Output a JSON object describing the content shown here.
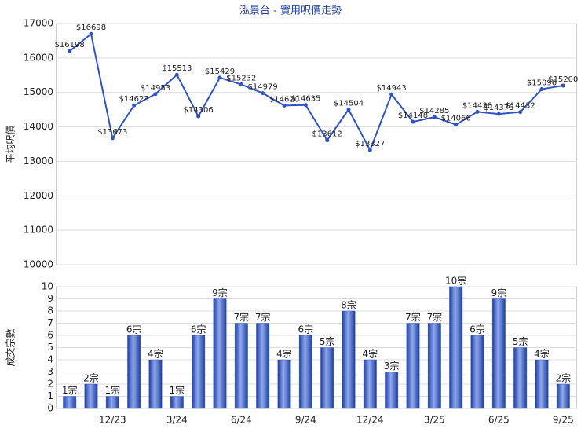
{
  "chart_data": [
    {
      "type": "line",
      "title": "泓景台 - 實用呎價走勢",
      "y_label": "平均呎價",
      "color": "#2f52c4",
      "values": [
        16198,
        16698,
        13673,
        14623,
        14953,
        15513,
        14306,
        15429,
        15232,
        14979,
        14620,
        14635,
        13612,
        14504,
        13327,
        14943,
        14148,
        14285,
        14066,
        14438,
        14376,
        14432,
        15096,
        15200
      ],
      "value_labels": [
        "$16198",
        "$16698",
        "$13673",
        "$14623",
        "$14953",
        "$15513",
        "$14306",
        "$15429",
        "$15232",
        "$14979",
        "$14620",
        "$14635",
        "$13612",
        "$14504",
        "$13327",
        "$14943",
        "$14148",
        "$14285",
        "$14066",
        "$14438",
        "$14376",
        "$14432",
        "$15096",
        "$15200"
      ],
      "ylim": [
        10000,
        17000
      ],
      "yticks": [
        10000,
        11000,
        12000,
        13000,
        14000,
        15000,
        16000,
        17000
      ],
      "grid": true
    },
    {
      "type": "bar",
      "y_label": "成交宗數",
      "color": "#3a5fc8",
      "categories": [
        null,
        null,
        "12/23",
        null,
        null,
        "3/24",
        null,
        null,
        "6/24",
        null,
        null,
        "9/24",
        null,
        null,
        "12/24",
        null,
        null,
        "3/25",
        null,
        null,
        "6/25",
        null,
        null,
        "9/25"
      ],
      "values": [
        1,
        2,
        1,
        6,
        4,
        1,
        6,
        9,
        7,
        7,
        4,
        6,
        5,
        8,
        4,
        3,
        7,
        7,
        10,
        6,
        9,
        5,
        4,
        2
      ],
      "value_labels": [
        "1宗",
        "2宗",
        "1宗",
        "6宗",
        "4宗",
        "1宗",
        "6宗",
        "9宗",
        "7宗",
        "7宗",
        "4宗",
        "6宗",
        "5宗",
        "8宗",
        "4宗",
        "3宗",
        "7宗",
        "7宗",
        "10宗",
        "6宗",
        "9宗",
        "5宗",
        "4宗",
        "2宗"
      ],
      "ylim": [
        0,
        10
      ],
      "yticks": [
        0,
        1,
        2,
        3,
        4,
        5,
        6,
        7,
        8,
        9,
        10
      ],
      "grid": true
    }
  ]
}
